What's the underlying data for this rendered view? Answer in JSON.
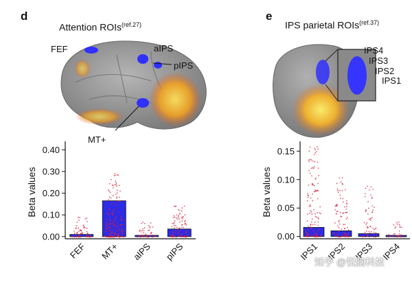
{
  "panel_d": {
    "letter": "d",
    "title": "Attention ROIs",
    "title_ref": "(ref.27)",
    "roi_labels": {
      "fef": "FEF",
      "aips": "aIPS",
      "pips": "pIPS",
      "mt": "MT+"
    }
  },
  "panel_e": {
    "letter": "e",
    "title": "IPS parietal ROIs",
    "title_ref": "(ref.37)",
    "roi_labels": {
      "ips4": "IPS4",
      "ips3": "IPS3",
      "ips2": "IPS2",
      "ips1": "IPS1"
    }
  },
  "watermark": "知乎 @悦脑科技",
  "colors": {
    "bar": "#2b2be8",
    "dots": "#d8203a",
    "brain": "#8f8f8f",
    "activation": "#f0a020",
    "roi": "#3030ff"
  },
  "chart_data": [
    {
      "type": "bar",
      "categories": [
        "FEF",
        "MT+",
        "aIPS",
        "pIPS"
      ],
      "values": [
        0.01,
        0.165,
        0.006,
        0.035
      ],
      "xlabel": "",
      "ylabel": "Beta values",
      "ylim": [
        -0.01,
        0.42
      ],
      "yticks": [
        "0.00",
        "0.10",
        "0.20",
        "0.30",
        "0.40"
      ],
      "ytick_values": [
        0,
        0.1,
        0.2,
        0.3,
        0.4
      ],
      "scatter_max": [
        0.1,
        0.31,
        0.07,
        0.15
      ],
      "scatter_count": [
        60,
        170,
        45,
        90
      ]
    },
    {
      "type": "bar",
      "categories": [
        "IPS1",
        "IPS2",
        "IPS3",
        "IPS4"
      ],
      "values": [
        0.016,
        0.01,
        0.005,
        0.002
      ],
      "xlabel": "",
      "ylabel": "Beta values",
      "ylim": [
        -0.004,
        0.16
      ],
      "yticks": [
        "0.00",
        "0.05",
        "0.10",
        "0.15"
      ],
      "ytick_values": [
        0,
        0.05,
        0.1,
        0.15
      ],
      "scatter_max": [
        0.16,
        0.105,
        0.09,
        0.03
      ],
      "scatter_count": [
        130,
        90,
        60,
        30
      ]
    }
  ]
}
